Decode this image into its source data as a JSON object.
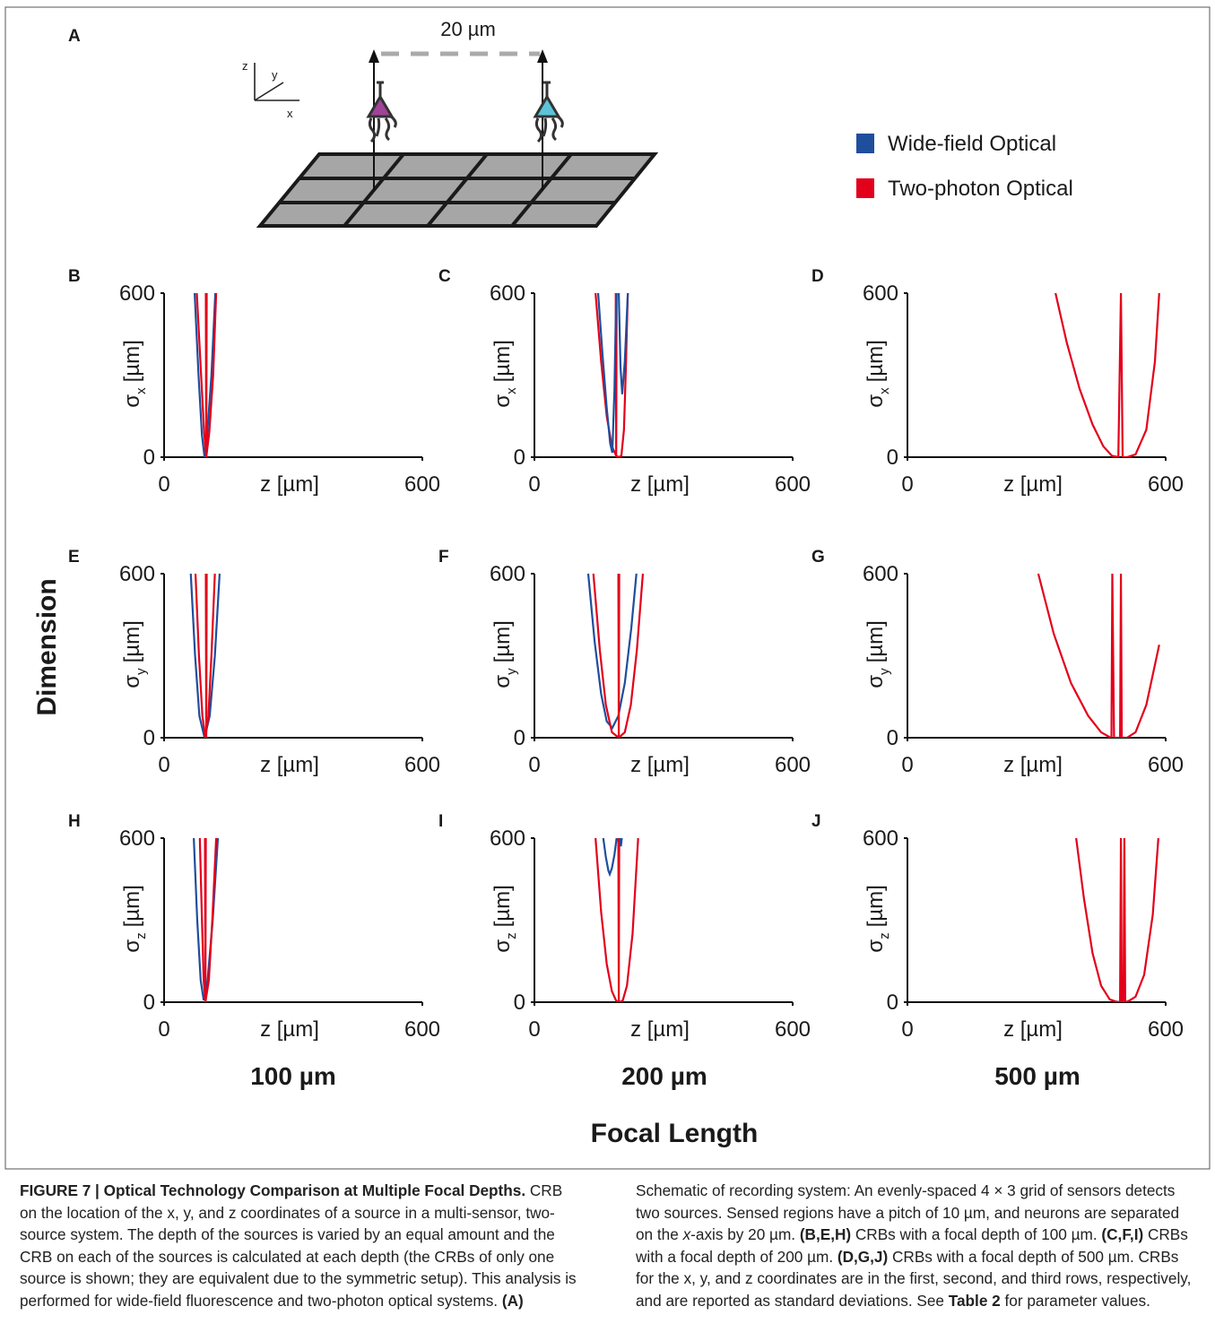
{
  "schematic": {
    "label": "A",
    "distance": "20 µm",
    "axes": [
      "z",
      "y",
      "x"
    ]
  },
  "legend": [
    {
      "name": "Wide-field Optical",
      "color": "#1f4e9c"
    },
    {
      "name": "Two-photon Optical",
      "color": "#e3001b"
    }
  ],
  "column_labels": [
    "100 µm",
    "200 µm",
    "500 µm"
  ],
  "x_title": "Focal Length",
  "y_title": "Dimension",
  "chart_data": [
    {
      "type": "line",
      "label": "B",
      "ylabel": {
        "symbol": "σ",
        "sub": "x",
        "unit": "[µm]"
      },
      "xlabel": "z [µm]",
      "xlim": [
        0,
        600
      ],
      "ylim": [
        0,
        600
      ],
      "xticks": [
        0,
        600
      ],
      "yticks": [
        0,
        600
      ],
      "series": [
        {
          "color": "#1f4e9c",
          "x": [
            71,
            80,
            88,
            94,
            100,
            110,
            119
          ],
          "values": [
            600,
            300,
            80,
            0,
            80,
            300,
            600
          ]
        },
        {
          "color": "#e3001b",
          "x": [
            76,
            86,
            93,
            98,
            105,
            114,
            121
          ],
          "values": [
            600,
            300,
            90,
            0,
            90,
            300,
            600
          ]
        },
        {
          "color": "#e3001b",
          "x": [
            97,
            98,
            99
          ],
          "values": [
            600,
            0,
            600
          ]
        }
      ]
    },
    {
      "type": "line",
      "label": "C",
      "ylabel": {
        "symbol": "σ",
        "sub": "x",
        "unit": "[µm]"
      },
      "xlabel": "z [µm]",
      "xlim": [
        0,
        600
      ],
      "ylim": [
        0,
        600
      ],
      "xticks": [
        0,
        600
      ],
      "yticks": [
        0,
        600
      ],
      "series": [
        {
          "color": "#e3001b",
          "x": [
            142,
            155,
            168,
            180,
            190,
            196,
            202,
            208,
            212,
            217
          ],
          "values": [
            600,
            350,
            150,
            40,
            5,
            0,
            5,
            100,
            300,
            600
          ]
        },
        {
          "color": "#e3001b",
          "x": [
            189,
            190,
            191
          ],
          "values": [
            600,
            0,
            600
          ]
        },
        {
          "color": "#1f4e9c",
          "x": [
            148,
            158,
            168,
            176,
            181,
            186,
            190
          ],
          "values": [
            600,
            380,
            180,
            50,
            16,
            250,
            600
          ]
        },
        {
          "color": "#1f4e9c",
          "x": [
            196,
            200,
            204,
            210,
            217
          ],
          "values": [
            600,
            330,
            230,
            350,
            600
          ]
        }
      ]
    },
    {
      "type": "line",
      "label": "D",
      "ylabel": {
        "symbol": "σ",
        "sub": "x",
        "unit": "[µm]"
      },
      "xlabel": "z [µm]",
      "xlim": [
        0,
        600
      ],
      "ylim": [
        0,
        600
      ],
      "xticks": [
        0,
        600
      ],
      "yticks": [
        0,
        600
      ],
      "series": [
        {
          "color": "#e3001b",
          "x": [
            344,
            370,
            400,
            430,
            455,
            475,
            490,
            496,
            500,
            510,
            530,
            555,
            575,
            585
          ],
          "values": [
            600,
            420,
            250,
            120,
            40,
            5,
            0,
            600,
            0,
            0,
            10,
            100,
            350,
            600
          ]
        }
      ]
    },
    {
      "type": "line",
      "label": "E",
      "ylabel": {
        "symbol": "σ",
        "sub": "y",
        "unit": "[µm]"
      },
      "xlabel": "z [µm]",
      "xlim": [
        0,
        600
      ],
      "ylim": [
        0,
        600
      ],
      "xticks": [
        0,
        600
      ],
      "yticks": [
        0,
        600
      ],
      "series": [
        {
          "color": "#1f4e9c",
          "x": [
            62,
            72,
            82,
            94,
            106,
            118,
            129
          ],
          "values": [
            600,
            300,
            80,
            0,
            80,
            300,
            600
          ]
        },
        {
          "color": "#e3001b",
          "x": [
            73,
            81,
            89,
            96,
            103,
            110,
            118
          ],
          "values": [
            600,
            300,
            80,
            0,
            80,
            300,
            600
          ]
        },
        {
          "color": "#e3001b",
          "x": [
            97,
            98,
            99
          ],
          "values": [
            600,
            0,
            600
          ]
        }
      ]
    },
    {
      "type": "line",
      "label": "F",
      "ylabel": {
        "symbol": "σ",
        "sub": "y",
        "unit": "[µm]"
      },
      "xlabel": "z [µm]",
      "xlim": [
        0,
        600
      ],
      "ylim": [
        0,
        600
      ],
      "xticks": [
        0,
        600
      ],
      "yticks": [
        0,
        600
      ],
      "series": [
        {
          "color": "#1f4e9c",
          "x": [
            125,
            140,
            155,
            168,
            181,
            195,
            210,
            225,
            237
          ],
          "values": [
            600,
            350,
            160,
            60,
            36,
            80,
            200,
            400,
            600
          ]
        },
        {
          "color": "#e3001b",
          "x": [
            137,
            152,
            166,
            180,
            196,
            210,
            224,
            238,
            252
          ],
          "values": [
            600,
            320,
            120,
            20,
            0,
            20,
            120,
            320,
            600
          ]
        },
        {
          "color": "#e3001b",
          "x": [
            195,
            196,
            197
          ],
          "values": [
            600,
            0,
            600
          ]
        }
      ]
    },
    {
      "type": "line",
      "label": "G",
      "ylabel": {
        "symbol": "σ",
        "sub": "y",
        "unit": "[µm]"
      },
      "xlabel": "z [µm]",
      "xlim": [
        0,
        600
      ],
      "ylim": [
        0,
        600
      ],
      "xticks": [
        0,
        600
      ],
      "yticks": [
        0,
        600
      ],
      "series": [
        {
          "color": "#e3001b",
          "x": [
            304,
            340,
            380,
            420,
            450,
            470,
            474,
            476,
            480,
            494,
            496,
            498,
            510,
            530,
            555,
            585
          ],
          "values": [
            600,
            380,
            200,
            80,
            20,
            2,
            0,
            600,
            0,
            0,
            600,
            0,
            0,
            20,
            120,
            340
          ]
        }
      ]
    },
    {
      "type": "line",
      "label": "H",
      "ylabel": {
        "symbol": "σ",
        "sub": "z",
        "unit": "[µm]"
      },
      "xlabel": "z [µm]",
      "xlim": [
        0,
        600
      ],
      "ylim": [
        0,
        600
      ],
      "xticks": [
        0,
        600
      ],
      "yticks": [
        0,
        600
      ],
      "series": [
        {
          "color": "#1f4e9c",
          "x": [
            69,
            77,
            85,
            92,
            101,
            113,
            125
          ],
          "values": [
            600,
            300,
            80,
            7,
            80,
            300,
            600
          ]
        },
        {
          "color": "#e3001b",
          "x": [
            83,
            88,
            92,
            96,
            104,
            112,
            121
          ],
          "values": [
            600,
            300,
            80,
            0,
            80,
            300,
            600
          ]
        },
        {
          "color": "#e3001b",
          "x": [
            95,
            96,
            97
          ],
          "values": [
            600,
            0,
            600
          ]
        }
      ]
    },
    {
      "type": "line",
      "label": "I",
      "ylabel": {
        "symbol": "σ",
        "sub": "z",
        "unit": "[µm]"
      },
      "xlabel": "z [µm]",
      "xlim": [
        0,
        600
      ],
      "ylim": [
        0,
        600
      ],
      "xticks": [
        0,
        600
      ],
      "yticks": [
        0,
        600
      ],
      "series": [
        {
          "color": "#e3001b",
          "x": [
            142,
            155,
            168,
            180,
            190,
            196,
            205,
            215,
            228,
            241
          ],
          "values": [
            600,
            330,
            140,
            40,
            5,
            0,
            5,
            60,
            250,
            600
          ]
        },
        {
          "color": "#e3001b",
          "x": [
            195,
            196,
            197
          ],
          "values": [
            600,
            0,
            600
          ]
        },
        {
          "color": "#1f4e9c",
          "x": [
            160,
            166,
            172,
            175,
            180,
            186,
            191
          ],
          "values": [
            600,
            530,
            480,
            468,
            490,
            540,
            600
          ]
        },
        {
          "color": "#1f4e9c",
          "x": [
            199,
            201,
            203
          ],
          "values": [
            600,
            570,
            600
          ]
        }
      ]
    },
    {
      "type": "line",
      "label": "J",
      "ylabel": {
        "symbol": "σ",
        "sub": "z",
        "unit": "[µm]"
      },
      "xlabel": "z [µm]",
      "xlim": [
        0,
        600
      ],
      "ylim": [
        0,
        600
      ],
      "xticks": [
        0,
        600
      ],
      "yticks": [
        0,
        600
      ],
      "series": [
        {
          "color": "#e3001b",
          "x": [
            392,
            410,
            430,
            450,
            470,
            485,
            494,
            496,
            498,
            502,
            504,
            506,
            515,
            530,
            550,
            570,
            583
          ],
          "values": [
            600,
            380,
            180,
            60,
            10,
            2,
            0,
            600,
            0,
            0,
            600,
            0,
            5,
            20,
            100,
            320,
            600
          ]
        }
      ]
    }
  ],
  "caption": [
    {
      "text": "FIGURE 7 | Optical Technology Comparison at Multiple Focal Depths.",
      "bold": true
    },
    {
      "text": " CRB on the location of the x, y, and z coordinates of a source in a multi-sensor, two-source system. The depth of the sources is varied by an equal amount and the CRB on each of the sources is calculated at each depth (the CRBs of only one source is shown; they are equivalent due to the symmetric setup). This analysis is performed for wide-field fluorescence and two-photon optical systems. "
    },
    {
      "text": "(A)",
      "bold": true
    },
    {
      "text": " Schematic of recording system: An evenly-spaced 4 × 3 grid of sensors detects two sources. Sensed regions have a pitch of 10 µm, and neurons are separated on the "
    },
    {
      "text": "x",
      "italic": true
    },
    {
      "text": "-axis by 20 µm. "
    },
    {
      "text": "(B,E,H)",
      "bold": true
    },
    {
      "text": " CRBs with a focal depth of 100 µm. "
    },
    {
      "text": "(C,F,I)",
      "bold": true
    },
    {
      "text": " CRBs with a focal depth of 200 µm. "
    },
    {
      "text": "(D,G,J)",
      "bold": true
    },
    {
      "text": " CRBs with a focal depth of 500 µm. CRBs for the x, y, and z coordinates are in the first, second, and third rows, respectively, and are reported as standard deviations. See "
    },
    {
      "text": "Table 2",
      "bold": true
    },
    {
      "text": " for parameter values."
    }
  ]
}
